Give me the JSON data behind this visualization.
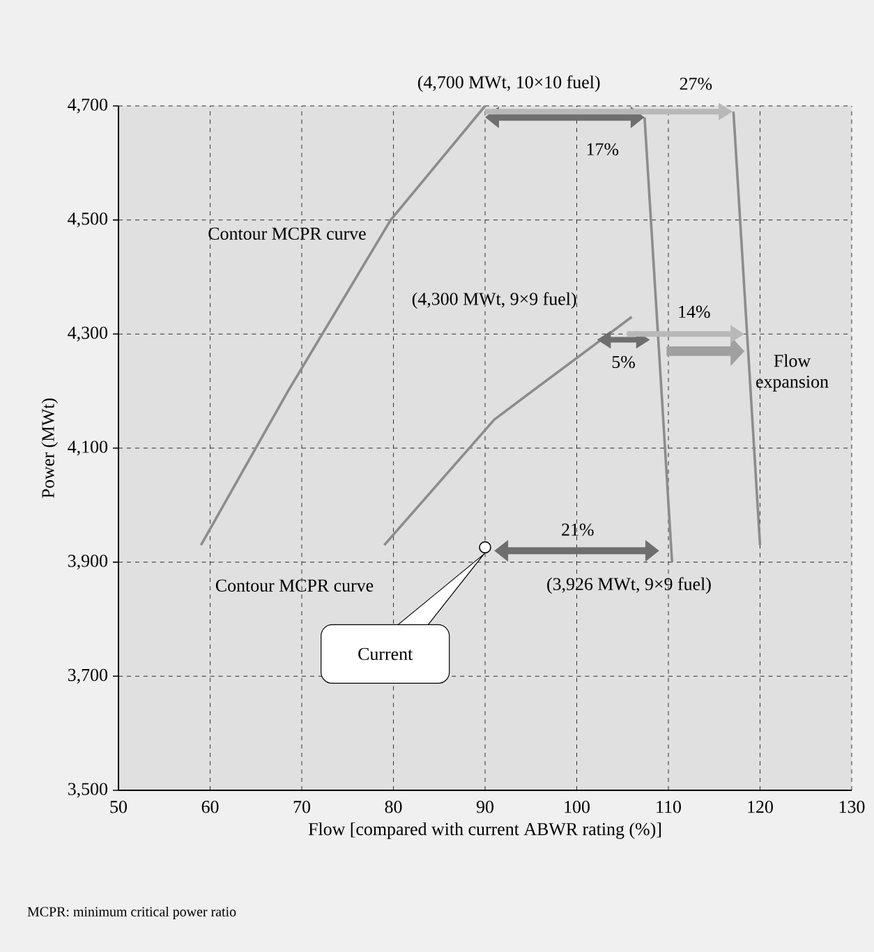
{
  "chart_data": {
    "type": "line",
    "xlabel": "Flow [compared with current ABWR rating (%)]",
    "ylabel": "Power (MWt)",
    "xlim": [
      50,
      130
    ],
    "ylim": [
      3500,
      4700
    ],
    "xticks": [
      50,
      60,
      70,
      80,
      90,
      100,
      110,
      120,
      130
    ],
    "yticks": [
      {
        "value": 3500,
        "label": "3,500"
      },
      {
        "value": 3700,
        "label": "3,700"
      },
      {
        "value": 3900,
        "label": "3,900"
      },
      {
        "value": 4100,
        "label": "4,100"
      },
      {
        "value": 4300,
        "label": "4,300"
      },
      {
        "value": 4500,
        "label": "4,500"
      },
      {
        "value": 4700,
        "label": "4,700"
      }
    ],
    "grid": true,
    "marker": "none",
    "line_style": "solid",
    "series": [
      {
        "color": "#8c8c8c",
        "x": [
          59,
          68.5,
          79.7,
          90
        ],
        "values": [
          3930,
          4200,
          4500,
          4700
        ]
      },
      {
        "color": "#8c8c8c",
        "x": [
          79,
          91,
          106
        ],
        "values": [
          3930,
          4150,
          4330
        ]
      },
      {
        "color": "#8c8c8c",
        "x": [
          107.4,
          110.4
        ],
        "values": [
          4680,
          3900
        ]
      },
      {
        "color": "#8c8c8c",
        "x": [
          117.1,
          120
        ],
        "values": [
          4690,
          3930
        ]
      },
      {
        "type": "scatter",
        "color": "#ffffff",
        "marker": "circle",
        "x": [
          90
        ],
        "values": [
          3926
        ]
      }
    ],
    "annotations": [
      "(4,700 MWt, 10×10 fuel)",
      {
        "text": "27%",
        "x": 117.1,
        "y": 4690
      },
      "17%",
      "Contour MCPR curve",
      "(4,300 MWt, 9×9 fuel)",
      "14%",
      "5%",
      "Flow expansion",
      "21%",
      "Contour MCPR curve",
      "(3,926 MWt, 9×9 fuel)",
      "Current",
      "MCPR: minimum critical power ratio"
    ]
  }
}
